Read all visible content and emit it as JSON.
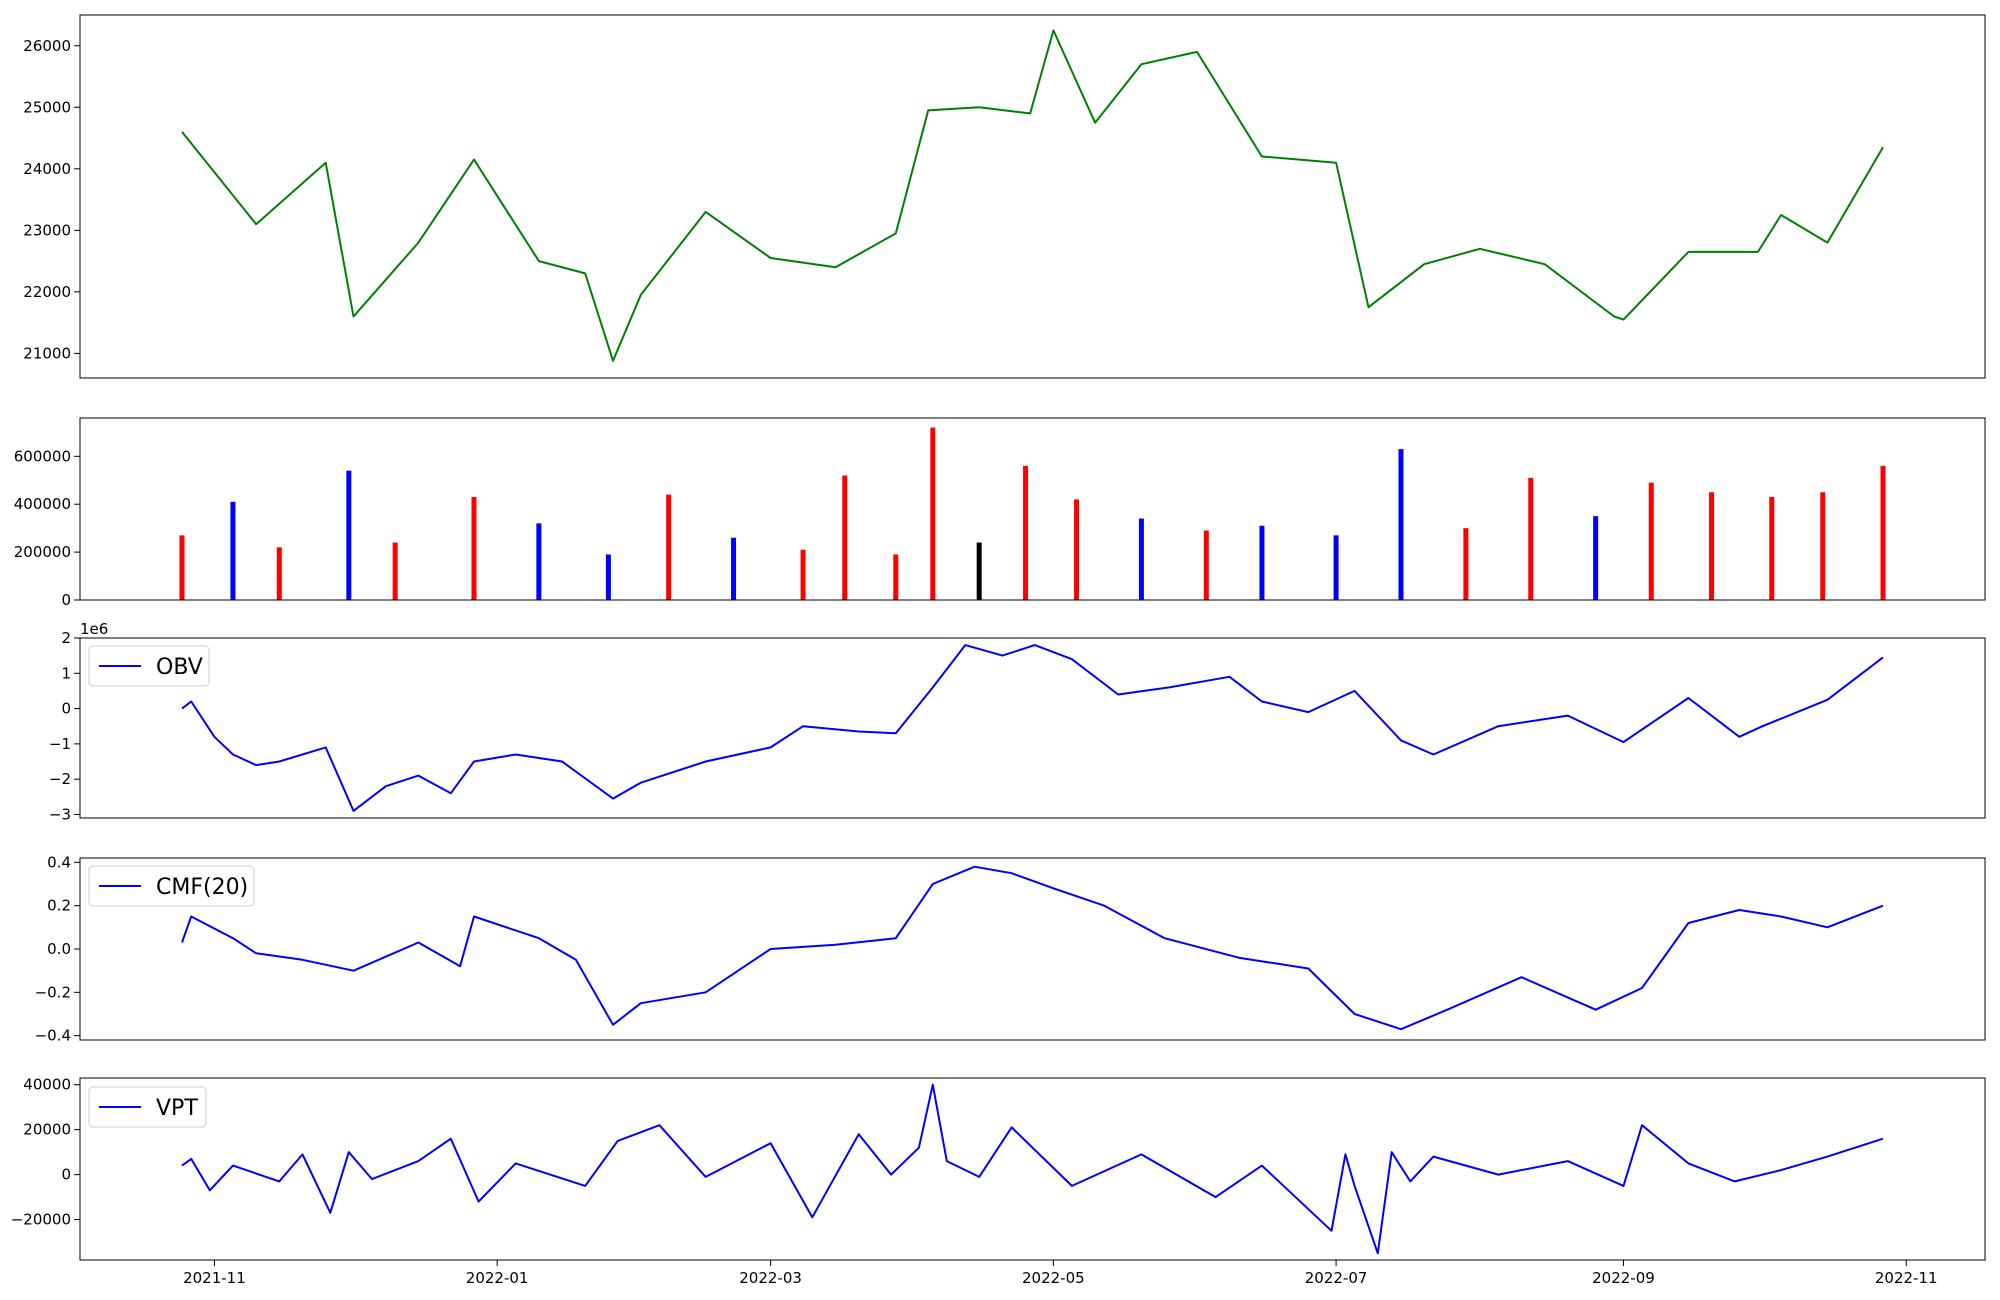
{
  "chart_data": [
    {
      "type": "line",
      "title": "",
      "xlabel": "",
      "ylabel": "",
      "color": "#008000",
      "ylim": [
        20600,
        26500
      ],
      "yticks": [
        21000,
        22000,
        23000,
        24000,
        25000,
        26000
      ],
      "y_tick_labels": [
        "21000",
        "22000",
        "23000",
        "24000",
        "25000",
        "26000"
      ],
      "x": [
        "2021-10-25",
        "2021-11-10",
        "2021-11-25",
        "2021-12-01",
        "2021-12-15",
        "2021-12-27",
        "2022-01-10",
        "2022-01-20",
        "2022-01-26",
        "2022-02-01",
        "2022-02-15",
        "2022-03-01",
        "2022-03-15",
        "2022-03-28",
        "2022-04-04",
        "2022-04-15",
        "2022-04-26",
        "2022-05-01",
        "2022-05-10",
        "2022-05-20",
        "2022-06-01",
        "2022-06-15",
        "2022-07-01",
        "2022-07-08",
        "2022-07-20",
        "2022-08-01",
        "2022-08-15",
        "2022-08-30",
        "2022-09-01",
        "2022-09-15",
        "2022-09-30",
        "2022-10-05",
        "2022-10-15",
        "2022-10-27"
      ],
      "y": [
        24600,
        23100,
        24100,
        21600,
        22800,
        24150,
        22500,
        22300,
        20880,
        21950,
        23300,
        22550,
        22400,
        22950,
        24950,
        25000,
        24900,
        26250,
        24750,
        25700,
        25900,
        24200,
        24100,
        21750,
        22450,
        22700,
        22450,
        21600,
        21550,
        22650,
        22650,
        23250,
        22800,
        24350
      ]
    },
    {
      "type": "bar",
      "title": "",
      "ylim": [
        0,
        760000
      ],
      "yticks": [
        0,
        200000,
        400000,
        600000
      ],
      "y_tick_labels": [
        "0",
        "200000",
        "400000",
        "600000"
      ],
      "colors": {
        "up": "#ff0000",
        "down": "#0000ff",
        "flat": "#000000"
      },
      "x": [
        "2021-10-25",
        "2021-11-05",
        "2021-11-15",
        "2021-11-30",
        "2021-12-10",
        "2021-12-27",
        "2022-01-10",
        "2022-01-25",
        "2022-02-07",
        "2022-02-21",
        "2022-03-08",
        "2022-03-17",
        "2022-03-28",
        "2022-04-05",
        "2022-04-15",
        "2022-04-25",
        "2022-05-06",
        "2022-05-20",
        "2022-06-03",
        "2022-06-15",
        "2022-07-01",
        "2022-07-15",
        "2022-07-29",
        "2022-08-12",
        "2022-08-26",
        "2022-09-07",
        "2022-09-20",
        "2022-10-03",
        "2022-10-14",
        "2022-10-27"
      ],
      "values": [
        270000,
        410000,
        220000,
        540000,
        240000,
        430000,
        320000,
        190000,
        440000,
        260000,
        210000,
        520000,
        190000,
        720000,
        240000,
        560000,
        420000,
        340000,
        290000,
        310000,
        270000,
        630000,
        300000,
        510000,
        350000,
        490000,
        450000,
        430000,
        450000,
        560000
      ],
      "bar_colors": [
        "up",
        "down",
        "up",
        "down",
        "up",
        "up",
        "down",
        "down",
        "up",
        "down",
        "up",
        "up",
        "up",
        "up",
        "flat",
        "up",
        "up",
        "down",
        "up",
        "down",
        "down",
        "down",
        "up",
        "up",
        "down",
        "up",
        "up",
        "up",
        "up",
        "up"
      ]
    },
    {
      "type": "line",
      "title": "",
      "legend": [
        "OBV"
      ],
      "legend_position": "upper-left",
      "offset_text": "1e6",
      "color": "#0000ff",
      "ylim": [
        -3.1,
        2.0
      ],
      "yticks": [
        -3,
        -2,
        -1,
        0,
        1,
        2
      ],
      "y_tick_labels": [
        "−3",
        "−2",
        "−1",
        "0",
        "1",
        "2"
      ],
      "x": [
        "2021-10-25",
        "2021-10-27",
        "2021-11-01",
        "2021-11-05",
        "2021-11-10",
        "2021-11-15",
        "2021-11-25",
        "2021-12-01",
        "2021-12-08",
        "2021-12-15",
        "2021-12-22",
        "2021-12-27",
        "2022-01-05",
        "2022-01-15",
        "2022-01-26",
        "2022-02-01",
        "2022-02-15",
        "2022-03-01",
        "2022-03-08",
        "2022-03-20",
        "2022-03-28",
        "2022-04-05",
        "2022-04-12",
        "2022-04-20",
        "2022-04-27",
        "2022-05-05",
        "2022-05-15",
        "2022-05-26",
        "2022-06-08",
        "2022-06-15",
        "2022-06-25",
        "2022-07-05",
        "2022-07-15",
        "2022-07-22",
        "2022-08-05",
        "2022-08-20",
        "2022-09-01",
        "2022-09-15",
        "2022-09-26",
        "2022-10-01",
        "2022-10-15",
        "2022-10-27"
      ],
      "y": [
        0.0,
        0.2,
        -0.8,
        -1.3,
        -1.6,
        -1.5,
        -1.1,
        -2.9,
        -2.2,
        -1.9,
        -2.4,
        -1.5,
        -1.3,
        -1.5,
        -2.55,
        -2.1,
        -1.5,
        -1.1,
        -0.5,
        -0.65,
        -0.7,
        0.6,
        1.8,
        1.5,
        1.8,
        1.4,
        0.4,
        0.6,
        0.9,
        0.2,
        -0.1,
        0.5,
        -0.9,
        -1.3,
        -0.5,
        -0.2,
        -0.95,
        0.3,
        -0.8,
        -0.5,
        0.25,
        1.45
      ]
    },
    {
      "type": "line",
      "title": "",
      "legend": [
        "CMF(20)"
      ],
      "legend_position": "upper-left",
      "color": "#0000ff",
      "ylim": [
        -0.42,
        0.42
      ],
      "yticks": [
        -0.4,
        -0.2,
        0.0,
        0.2,
        0.4
      ],
      "y_tick_labels": [
        "−0.4",
        "−0.2",
        "0.0",
        "0.2",
        "0.4"
      ],
      "x": [
        "2021-10-25",
        "2021-10-27",
        "2021-11-05",
        "2021-11-10",
        "2021-11-20",
        "2021-12-01",
        "2021-12-15",
        "2021-12-24",
        "2021-12-27",
        "2022-01-10",
        "2022-01-18",
        "2022-01-26",
        "2022-02-01",
        "2022-02-15",
        "2022-03-01",
        "2022-03-15",
        "2022-03-28",
        "2022-04-05",
        "2022-04-14",
        "2022-04-22",
        "2022-05-01",
        "2022-05-12",
        "2022-05-25",
        "2022-06-10",
        "2022-06-25",
        "2022-07-05",
        "2022-07-15",
        "2022-07-25",
        "2022-08-10",
        "2022-08-26",
        "2022-09-05",
        "2022-09-15",
        "2022-09-26",
        "2022-10-05",
        "2022-10-15",
        "2022-10-27"
      ],
      "y": [
        0.03,
        0.15,
        0.05,
        -0.02,
        -0.05,
        -0.1,
        0.03,
        -0.08,
        0.15,
        0.05,
        -0.05,
        -0.35,
        -0.25,
        -0.2,
        0.0,
        0.02,
        0.05,
        0.3,
        0.38,
        0.35,
        0.28,
        0.2,
        0.05,
        -0.04,
        -0.09,
        -0.3,
        -0.37,
        -0.28,
        -0.13,
        -0.28,
        -0.18,
        0.12,
        0.18,
        0.15,
        0.1,
        0.2
      ]
    },
    {
      "type": "line",
      "title": "",
      "legend": [
        "VPT"
      ],
      "legend_position": "upper-left",
      "color": "#0000ff",
      "ylim": [
        -38000,
        43000
      ],
      "yticks": [
        -20000,
        0,
        20000,
        40000
      ],
      "y_tick_labels": [
        "−20000",
        "0",
        "20000",
        "40000"
      ],
      "x": [
        "2021-10-25",
        "2021-10-27",
        "2021-10-31",
        "2021-11-05",
        "2021-11-15",
        "2021-11-20",
        "2021-11-26",
        "2021-11-30",
        "2021-12-05",
        "2021-12-15",
        "2021-12-22",
        "2021-12-28",
        "2022-01-05",
        "2022-01-20",
        "2022-01-27",
        "2022-02-05",
        "2022-02-15",
        "2022-03-01",
        "2022-03-10",
        "2022-03-20",
        "2022-03-27",
        "2022-04-02",
        "2022-04-05",
        "2022-04-08",
        "2022-04-15",
        "2022-04-22",
        "2022-05-05",
        "2022-05-20",
        "2022-06-05",
        "2022-06-15",
        "2022-06-30",
        "2022-07-03",
        "2022-07-05",
        "2022-07-10",
        "2022-07-13",
        "2022-07-17",
        "2022-07-22",
        "2022-08-05",
        "2022-08-20",
        "2022-09-01",
        "2022-09-05",
        "2022-09-15",
        "2022-09-25",
        "2022-10-05",
        "2022-10-15",
        "2022-10-27"
      ],
      "y": [
        4000,
        7000,
        -7000,
        4000,
        -3000,
        9000,
        -17000,
        10000,
        -2000,
        6000,
        16000,
        -12000,
        5000,
        -5000,
        15000,
        22000,
        -1000,
        14000,
        -19000,
        18000,
        0,
        12000,
        40000,
        6000,
        -1000,
        21000,
        -5000,
        9000,
        -10000,
        4000,
        -25000,
        9000,
        -5000,
        -35000,
        10000,
        -3000,
        8000,
        0,
        6000,
        -5000,
        22000,
        5000,
        -3000,
        2000,
        8000,
        16000
      ]
    }
  ],
  "x_axis": {
    "min": "2021-10-03",
    "max": "2022-11-18",
    "ticks": [
      "2021-11-01",
      "2022-01-01",
      "2022-03-01",
      "2022-05-01",
      "2022-07-01",
      "2022-09-01",
      "2022-11-01"
    ],
    "tick_labels": [
      "2021-11",
      "2022-01",
      "2022-03",
      "2022-05",
      "2022-07",
      "2022-09",
      "2022-11"
    ]
  }
}
